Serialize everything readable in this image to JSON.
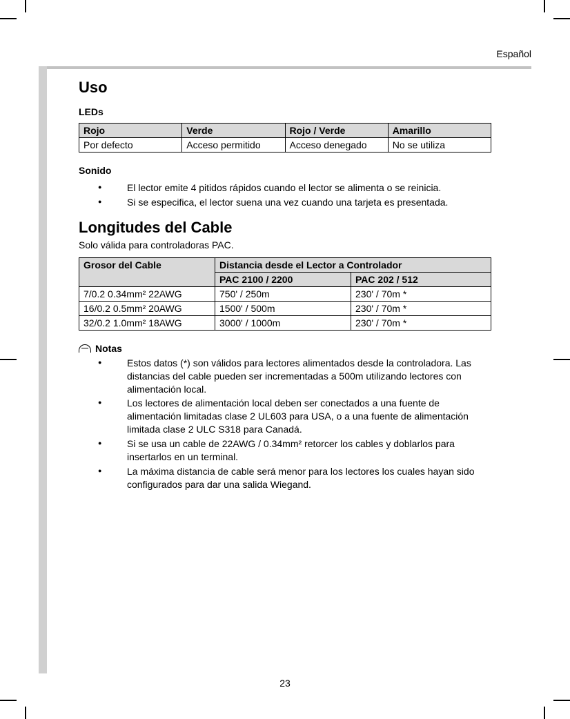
{
  "header": {
    "language": "Español"
  },
  "page_number": "23",
  "section_uso": {
    "title": "Uso",
    "leds_heading": "LEDs",
    "leds_table": {
      "headers": [
        "Rojo",
        "Verde",
        "Rojo / Verde",
        "Amarillo"
      ],
      "row": [
        "Por defecto",
        "Acceso permitido",
        "Acceso denegado",
        "No se utiliza"
      ],
      "header_bg": "#d9d9d9",
      "border_color": "#000000"
    },
    "sonido_heading": "Sonido",
    "sonido_items": [
      "El lector emite 4 pitidos rápidos cuando el lector se alimenta o se reinicia.",
      "Si se especifica, el lector suena una vez cuando una tarjeta es presentada."
    ]
  },
  "section_cable": {
    "title": "Longitudes del Cable",
    "subtitle": "Solo válida para controladoras PAC.",
    "table": {
      "col1_header": "Grosor del Cable",
      "col2_header": "Distancia desde el Lector a Controlador",
      "sub_col2a": "PAC 2100 / 2200",
      "sub_col2b": "PAC 202 / 512",
      "rows": [
        [
          "7/0.2 0.34mm² 22AWG",
          "750' / 250m",
          "230' / 70m *"
        ],
        [
          "16/0.2 0.5mm² 20AWG",
          "1500' / 500m",
          "230' / 70m *"
        ],
        [
          "32/0.2 1.0mm² 18AWG",
          "3000' / 1000m",
          "230' / 70m *"
        ]
      ],
      "header_bg": "#d9d9d9",
      "border_color": "#000000"
    },
    "notas_heading": "Notas",
    "notas_items": [
      "Estos datos (*) son válidos para lectores alimentados desde la controladora. Las distancias del cable pueden ser incrementadas a 500m utilizando lectores con alimentación local.",
      "Los lectores de alimentación local deben ser conectados a una fuente de alimentación limitadas clase 2 UL603 para USA, o a una fuente de alimentación limitada clase 2 ULC S318 para Canadá.",
      "Si se usa un cable de 22AWG / 0.34mm² retorcer los cables y doblarlos para insertarlos en un terminal.",
      "La máxima distancia de cable será menor para los lectores los cuales hayan sido configurados para dar una salida Wiegand."
    ]
  },
  "colors": {
    "side_rule": "#d0d0d0",
    "top_rule": "#c2c2c2",
    "text": "#000000",
    "background": "#ffffff"
  },
  "typography": {
    "body_fontsize_pt": 10.5,
    "h1_fontsize_pt": 16,
    "font_family": "Arial"
  }
}
